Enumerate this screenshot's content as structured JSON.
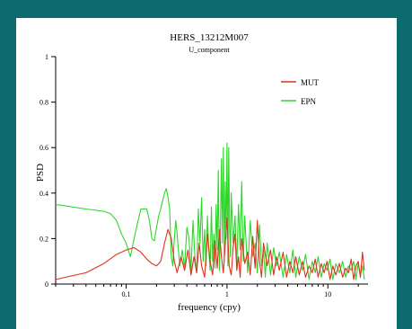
{
  "chart_data": {
    "type": "line",
    "title": "HERS_13212M007",
    "subtitle": "U_component",
    "xlabel": "frequency (cpy)",
    "ylabel": "PSD",
    "xscale": "log",
    "xlim": [
      0.02,
      25
    ],
    "ylim": [
      0,
      1
    ],
    "yticks": [
      0,
      0.2,
      0.4,
      0.6,
      0.8,
      1
    ],
    "ytick_labels": [
      "0",
      "0.2",
      "0.4",
      "0.6",
      "0.8",
      "1"
    ],
    "xticks": [
      0.1,
      1,
      10
    ],
    "xtick_labels": [
      "0.1",
      "1",
      "10"
    ],
    "legend_position": "top-right",
    "series": [
      {
        "name": "MUT",
        "color": "#e0301e",
        "x": [
          0.02,
          0.04,
          0.06,
          0.08,
          0.1,
          0.12,
          0.14,
          0.16,
          0.18,
          0.2,
          0.22,
          0.24,
          0.26,
          0.28,
          0.3,
          0.32,
          0.35,
          0.38,
          0.41,
          0.44,
          0.47,
          0.5,
          0.53,
          0.56,
          0.6,
          0.64,
          0.68,
          0.72,
          0.76,
          0.8,
          0.84,
          0.88,
          0.92,
          0.96,
          1.0,
          1.05,
          1.1,
          1.15,
          1.2,
          1.25,
          1.3,
          1.35,
          1.4,
          1.5,
          1.6,
          1.7,
          1.8,
          1.9,
          2.0,
          2.1,
          2.2,
          2.3,
          2.5,
          2.7,
          2.9,
          3.1,
          3.3,
          3.6,
          3.9,
          4.2,
          4.5,
          4.8,
          5.2,
          5.6,
          6.0,
          6.5,
          7.0,
          7.5,
          8.0,
          8.6,
          9.2,
          9.8,
          10.5,
          11.2,
          12.0,
          13.0,
          14.0,
          15.0,
          16.0,
          17.0,
          18.0,
          19.0,
          20.0,
          21.0,
          22.0,
          23.0
        ],
        "y": [
          0.02,
          0.05,
          0.09,
          0.13,
          0.15,
          0.16,
          0.14,
          0.11,
          0.09,
          0.08,
          0.1,
          0.18,
          0.24,
          0.2,
          0.1,
          0.05,
          0.12,
          0.06,
          0.15,
          0.04,
          0.12,
          0.05,
          0.18,
          0.08,
          0.03,
          0.22,
          0.1,
          0.04,
          0.19,
          0.07,
          0.24,
          0.12,
          0.05,
          0.17,
          0.29,
          0.08,
          0.04,
          0.16,
          0.22,
          0.06,
          0.12,
          0.03,
          0.2,
          0.09,
          0.14,
          0.04,
          0.21,
          0.07,
          0.28,
          0.1,
          0.03,
          0.18,
          0.08,
          0.15,
          0.04,
          0.12,
          0.06,
          0.14,
          0.03,
          0.1,
          0.05,
          0.12,
          0.04,
          0.1,
          0.03,
          0.08,
          0.05,
          0.11,
          0.03,
          0.09,
          0.05,
          0.1,
          0.02,
          0.08,
          0.04,
          0.09,
          0.03,
          0.07,
          0.05,
          0.11,
          0.02,
          0.08,
          0.1,
          0.03,
          0.14,
          0.06
        ]
      },
      {
        "name": "EPN",
        "color": "#2fd62a",
        "x": [
          0.02,
          0.04,
          0.06,
          0.07,
          0.08,
          0.09,
          0.1,
          0.11,
          0.12,
          0.13,
          0.14,
          0.15,
          0.16,
          0.17,
          0.18,
          0.19,
          0.2,
          0.21,
          0.22,
          0.24,
          0.25,
          0.26,
          0.27,
          0.28,
          0.29,
          0.3,
          0.31,
          0.32,
          0.34,
          0.36,
          0.38,
          0.4,
          0.42,
          0.44,
          0.46,
          0.48,
          0.5,
          0.52,
          0.54,
          0.56,
          0.58,
          0.6,
          0.62,
          0.64,
          0.66,
          0.68,
          0.7,
          0.72,
          0.74,
          0.76,
          0.78,
          0.8,
          0.82,
          0.84,
          0.86,
          0.88,
          0.9,
          0.92,
          0.94,
          0.96,
          0.98,
          1.0,
          1.02,
          1.04,
          1.06,
          1.08,
          1.1,
          1.15,
          1.2,
          1.25,
          1.3,
          1.35,
          1.4,
          1.45,
          1.5,
          1.6,
          1.7,
          1.8,
          1.9,
          2.0,
          2.1,
          2.2,
          2.3,
          2.4,
          2.5,
          2.7,
          2.9,
          3.1,
          3.3,
          3.6,
          3.9,
          4.2,
          4.5,
          4.8,
          5.2,
          5.6,
          6.0,
          6.5,
          7.0,
          7.5,
          8.0,
          8.6,
          9.2,
          9.8,
          10.5,
          11.2,
          12.0,
          13.0,
          14.0,
          15.0,
          16.0,
          17.0,
          18.0,
          19.0,
          20.0,
          21.0,
          22.0,
          23.0
        ],
        "y": [
          0.35,
          0.33,
          0.32,
          0.31,
          0.28,
          0.22,
          0.18,
          0.12,
          0.2,
          0.27,
          0.33,
          0.33,
          0.33,
          0.28,
          0.2,
          0.19,
          0.25,
          0.3,
          0.33,
          0.4,
          0.42,
          0.38,
          0.33,
          0.12,
          0.08,
          0.2,
          0.28,
          0.22,
          0.08,
          0.15,
          0.07,
          0.25,
          0.2,
          0.06,
          0.28,
          0.12,
          0.05,
          0.33,
          0.18,
          0.38,
          0.1,
          0.24,
          0.08,
          0.3,
          0.15,
          0.06,
          0.34,
          0.1,
          0.22,
          0.07,
          0.35,
          0.15,
          0.5,
          0.06,
          0.25,
          0.55,
          0.18,
          0.6,
          0.1,
          0.45,
          0.2,
          0.62,
          0.08,
          0.6,
          0.25,
          0.12,
          0.4,
          0.18,
          0.3,
          0.08,
          0.35,
          0.15,
          0.45,
          0.1,
          0.3,
          0.05,
          0.28,
          0.12,
          0.18,
          0.05,
          0.26,
          0.08,
          0.15,
          0.03,
          0.18,
          0.04,
          0.16,
          0.08,
          0.14,
          0.03,
          0.13,
          0.05,
          0.15,
          0.03,
          0.12,
          0.06,
          0.13,
          0.02,
          0.1,
          0.05,
          0.12,
          0.03,
          0.09,
          0.06,
          0.11,
          0.02,
          0.09,
          0.05,
          0.1,
          0.03,
          0.08,
          0.06,
          0.1,
          0.02,
          0.09,
          0.04,
          0.08,
          0.02
        ]
      }
    ]
  }
}
